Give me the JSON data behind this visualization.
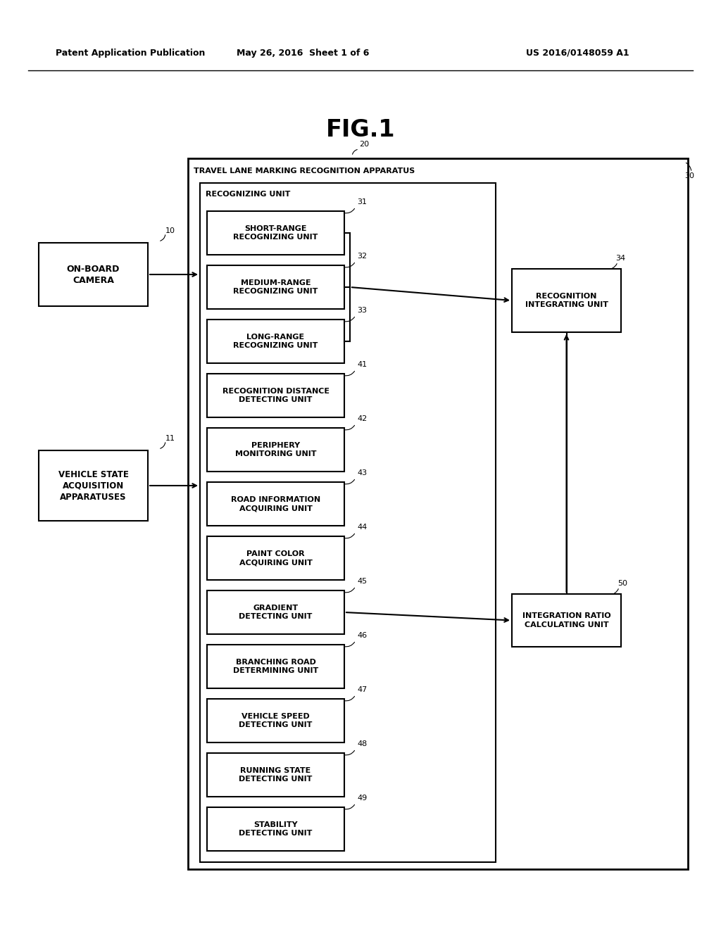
{
  "fig_title": "FIG.1",
  "header_left": "Patent Application Publication",
  "header_center": "May 26, 2016  Sheet 1 of 6",
  "header_right": "US 2016/0148059 A1",
  "bg_color": "#ffffff",
  "boxes": [
    {
      "label": "SHORT-RANGE\nRECOGNIZING UNIT",
      "ref": "31"
    },
    {
      "label": "MEDIUM-RANGE\nRECOGNIZING UNIT",
      "ref": "32"
    },
    {
      "label": "LONG-RANGE\nRECOGNIZING UNIT",
      "ref": "33"
    },
    {
      "label": "RECOGNITION DISTANCE\nDETECTING UNIT",
      "ref": "41"
    },
    {
      "label": "PERIPHERY\nMONITORING UNIT",
      "ref": "42"
    },
    {
      "label": "ROAD INFORMATION\nACQUIRING UNIT",
      "ref": "43"
    },
    {
      "label": "PAINT COLOR\nACQUIRING UNIT",
      "ref": "44"
    },
    {
      "label": "GRADIENT\nDETECTING UNIT",
      "ref": "45"
    },
    {
      "label": "BRANCHING ROAD\nDETERMINING UNIT",
      "ref": "46"
    },
    {
      "label": "VEHICLE SPEED\nDETECTING UNIT",
      "ref": "47"
    },
    {
      "label": "RUNNING STATE\nDETECTING UNIT",
      "ref": "48"
    },
    {
      "label": "STABILITY\nDETECTING UNIT",
      "ref": "49"
    }
  ]
}
